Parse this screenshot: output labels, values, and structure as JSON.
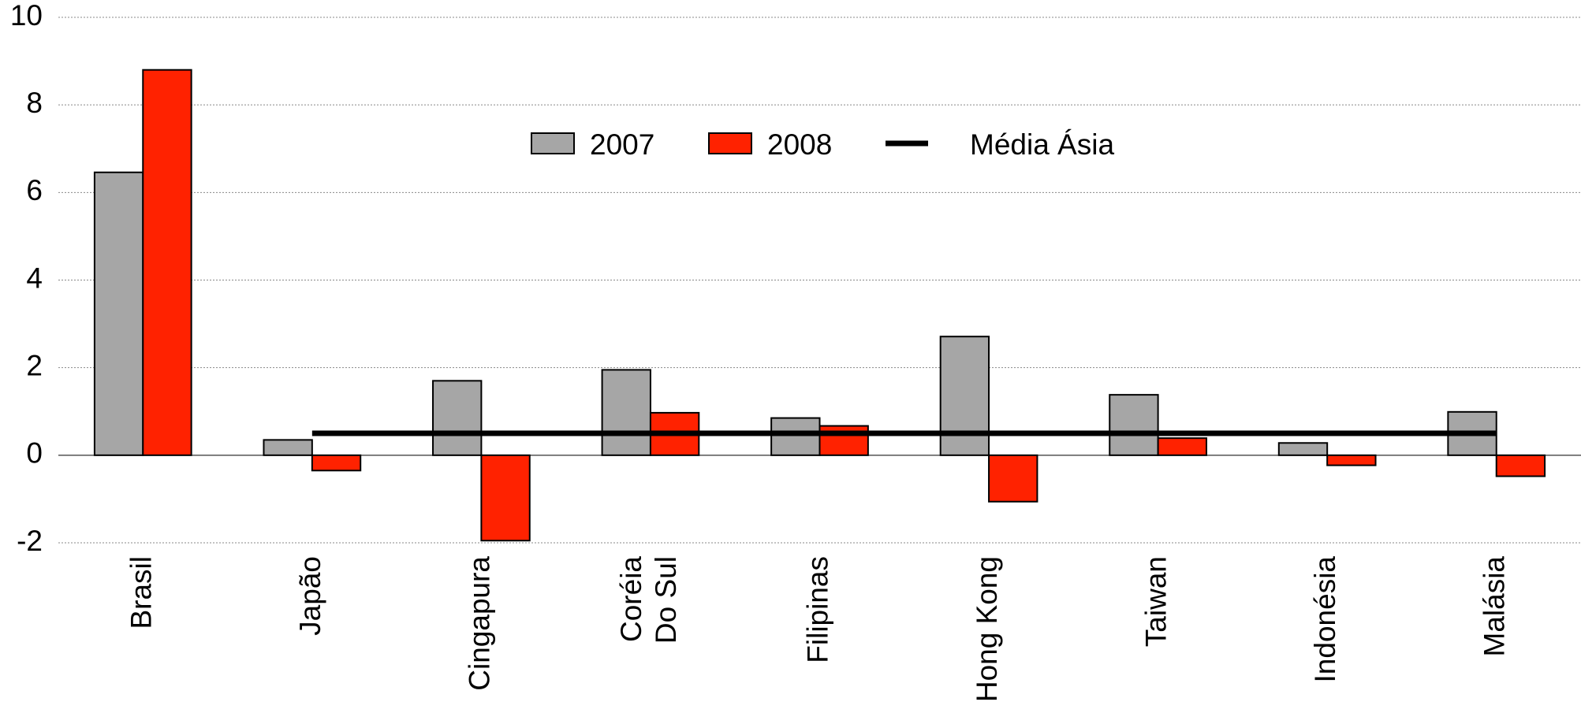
{
  "chart_data": {
    "type": "bar",
    "categories": [
      "Brasil",
      "Japão",
      "Cingapura",
      "Coréia\nDo Sul",
      "Filipinas",
      "Hong Kong",
      "Taiwan",
      "Indonésia",
      "Malásia"
    ],
    "series": [
      {
        "name": "2007",
        "color": "#a6a6a6",
        "values": [
          6.46,
          0.35,
          1.7,
          1.95,
          0.85,
          2.71,
          1.38,
          0.28,
          0.99
        ]
      },
      {
        "name": "2008",
        "color": "#ff2200",
        "values": [
          8.8,
          -0.35,
          -1.95,
          0.97,
          0.67,
          -1.06,
          0.39,
          -0.23,
          -0.48
        ]
      },
      {
        "name": "Média Ásia",
        "type": "line",
        "color": "#000000",
        "values": [
          null,
          0.5,
          0.5,
          0.5,
          0.5,
          0.5,
          0.5,
          0.5,
          0.5
        ]
      }
    ],
    "ylim": [
      -2,
      10
    ],
    "yticks": [
      -2,
      0,
      2,
      4,
      6,
      8,
      10
    ],
    "grid": true
  }
}
